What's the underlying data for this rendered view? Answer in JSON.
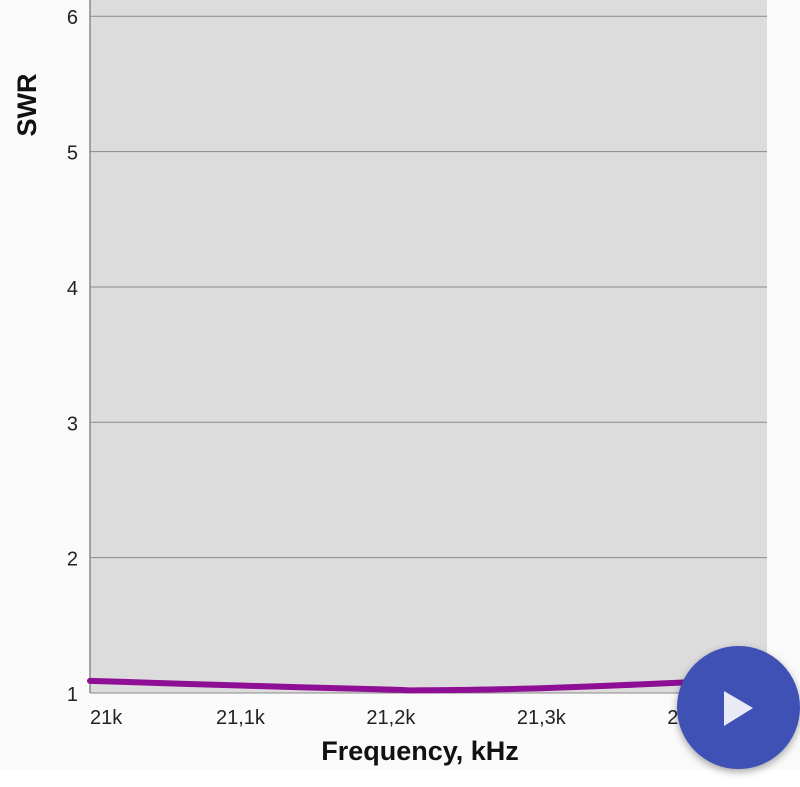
{
  "chart_data": {
    "type": "line",
    "xlabel": "Frequency, kHz",
    "ylabel": "SWR",
    "xlim": [
      21000,
      21450
    ],
    "ylim": [
      1,
      6.12
    ],
    "x_ticks": [
      21000,
      21100,
      21200,
      21300,
      21400
    ],
    "x_tick_labels": [
      "21k",
      "21,1k",
      "21,2k",
      "21,3k",
      "21,4k"
    ],
    "y_ticks": [
      1,
      2,
      3,
      4,
      5,
      6
    ],
    "y_tick_labels": [
      "1",
      "2",
      "3",
      "4",
      "5",
      "6"
    ],
    "grid": true,
    "series": [
      {
        "x": [
          21000,
          21100,
          21200,
          21220,
          21300,
          21400
        ],
        "y": [
          1.09,
          1.055,
          1.025,
          1.02,
          1.035,
          1.08
        ],
        "color": "#8e0e96"
      }
    ],
    "plot_background": "#dcdcdc"
  },
  "fab": {
    "icon": "play-icon",
    "color": "#3f51b5"
  }
}
